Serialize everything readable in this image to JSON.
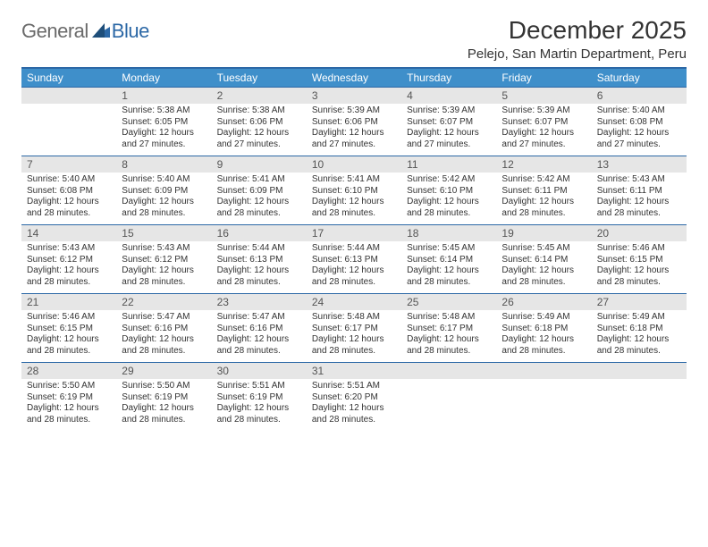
{
  "logo": {
    "text_general": "General",
    "text_blue": "Blue"
  },
  "title": "December 2025",
  "location": "Pelejo, San Martin Department, Peru",
  "colors": {
    "header_bar": "#3f8fca",
    "divider": "#2c68a6",
    "daynum_bg": "#e6e6e6",
    "logo_gray": "#6a6a6a",
    "logo_blue": "#2c68a6"
  },
  "day_labels": [
    "Sunday",
    "Monday",
    "Tuesday",
    "Wednesday",
    "Thursday",
    "Friday",
    "Saturday"
  ],
  "weeks": [
    [
      {
        "n": "",
        "sr": "",
        "ss": "",
        "dl": ""
      },
      {
        "n": "1",
        "sr": "Sunrise: 5:38 AM",
        "ss": "Sunset: 6:05 PM",
        "dl": "Daylight: 12 hours and 27 minutes."
      },
      {
        "n": "2",
        "sr": "Sunrise: 5:38 AM",
        "ss": "Sunset: 6:06 PM",
        "dl": "Daylight: 12 hours and 27 minutes."
      },
      {
        "n": "3",
        "sr": "Sunrise: 5:39 AM",
        "ss": "Sunset: 6:06 PM",
        "dl": "Daylight: 12 hours and 27 minutes."
      },
      {
        "n": "4",
        "sr": "Sunrise: 5:39 AM",
        "ss": "Sunset: 6:07 PM",
        "dl": "Daylight: 12 hours and 27 minutes."
      },
      {
        "n": "5",
        "sr": "Sunrise: 5:39 AM",
        "ss": "Sunset: 6:07 PM",
        "dl": "Daylight: 12 hours and 27 minutes."
      },
      {
        "n": "6",
        "sr": "Sunrise: 5:40 AM",
        "ss": "Sunset: 6:08 PM",
        "dl": "Daylight: 12 hours and 27 minutes."
      }
    ],
    [
      {
        "n": "7",
        "sr": "Sunrise: 5:40 AM",
        "ss": "Sunset: 6:08 PM",
        "dl": "Daylight: 12 hours and 28 minutes."
      },
      {
        "n": "8",
        "sr": "Sunrise: 5:40 AM",
        "ss": "Sunset: 6:09 PM",
        "dl": "Daylight: 12 hours and 28 minutes."
      },
      {
        "n": "9",
        "sr": "Sunrise: 5:41 AM",
        "ss": "Sunset: 6:09 PM",
        "dl": "Daylight: 12 hours and 28 minutes."
      },
      {
        "n": "10",
        "sr": "Sunrise: 5:41 AM",
        "ss": "Sunset: 6:10 PM",
        "dl": "Daylight: 12 hours and 28 minutes."
      },
      {
        "n": "11",
        "sr": "Sunrise: 5:42 AM",
        "ss": "Sunset: 6:10 PM",
        "dl": "Daylight: 12 hours and 28 minutes."
      },
      {
        "n": "12",
        "sr": "Sunrise: 5:42 AM",
        "ss": "Sunset: 6:11 PM",
        "dl": "Daylight: 12 hours and 28 minutes."
      },
      {
        "n": "13",
        "sr": "Sunrise: 5:43 AM",
        "ss": "Sunset: 6:11 PM",
        "dl": "Daylight: 12 hours and 28 minutes."
      }
    ],
    [
      {
        "n": "14",
        "sr": "Sunrise: 5:43 AM",
        "ss": "Sunset: 6:12 PM",
        "dl": "Daylight: 12 hours and 28 minutes."
      },
      {
        "n": "15",
        "sr": "Sunrise: 5:43 AM",
        "ss": "Sunset: 6:12 PM",
        "dl": "Daylight: 12 hours and 28 minutes."
      },
      {
        "n": "16",
        "sr": "Sunrise: 5:44 AM",
        "ss": "Sunset: 6:13 PM",
        "dl": "Daylight: 12 hours and 28 minutes."
      },
      {
        "n": "17",
        "sr": "Sunrise: 5:44 AM",
        "ss": "Sunset: 6:13 PM",
        "dl": "Daylight: 12 hours and 28 minutes."
      },
      {
        "n": "18",
        "sr": "Sunrise: 5:45 AM",
        "ss": "Sunset: 6:14 PM",
        "dl": "Daylight: 12 hours and 28 minutes."
      },
      {
        "n": "19",
        "sr": "Sunrise: 5:45 AM",
        "ss": "Sunset: 6:14 PM",
        "dl": "Daylight: 12 hours and 28 minutes."
      },
      {
        "n": "20",
        "sr": "Sunrise: 5:46 AM",
        "ss": "Sunset: 6:15 PM",
        "dl": "Daylight: 12 hours and 28 minutes."
      }
    ],
    [
      {
        "n": "21",
        "sr": "Sunrise: 5:46 AM",
        "ss": "Sunset: 6:15 PM",
        "dl": "Daylight: 12 hours and 28 minutes."
      },
      {
        "n": "22",
        "sr": "Sunrise: 5:47 AM",
        "ss": "Sunset: 6:16 PM",
        "dl": "Daylight: 12 hours and 28 minutes."
      },
      {
        "n": "23",
        "sr": "Sunrise: 5:47 AM",
        "ss": "Sunset: 6:16 PM",
        "dl": "Daylight: 12 hours and 28 minutes."
      },
      {
        "n": "24",
        "sr": "Sunrise: 5:48 AM",
        "ss": "Sunset: 6:17 PM",
        "dl": "Daylight: 12 hours and 28 minutes."
      },
      {
        "n": "25",
        "sr": "Sunrise: 5:48 AM",
        "ss": "Sunset: 6:17 PM",
        "dl": "Daylight: 12 hours and 28 minutes."
      },
      {
        "n": "26",
        "sr": "Sunrise: 5:49 AM",
        "ss": "Sunset: 6:18 PM",
        "dl": "Daylight: 12 hours and 28 minutes."
      },
      {
        "n": "27",
        "sr": "Sunrise: 5:49 AM",
        "ss": "Sunset: 6:18 PM",
        "dl": "Daylight: 12 hours and 28 minutes."
      }
    ],
    [
      {
        "n": "28",
        "sr": "Sunrise: 5:50 AM",
        "ss": "Sunset: 6:19 PM",
        "dl": "Daylight: 12 hours and 28 minutes."
      },
      {
        "n": "29",
        "sr": "Sunrise: 5:50 AM",
        "ss": "Sunset: 6:19 PM",
        "dl": "Daylight: 12 hours and 28 minutes."
      },
      {
        "n": "30",
        "sr": "Sunrise: 5:51 AM",
        "ss": "Sunset: 6:19 PM",
        "dl": "Daylight: 12 hours and 28 minutes."
      },
      {
        "n": "31",
        "sr": "Sunrise: 5:51 AM",
        "ss": "Sunset: 6:20 PM",
        "dl": "Daylight: 12 hours and 28 minutes."
      },
      {
        "n": "",
        "sr": "",
        "ss": "",
        "dl": ""
      },
      {
        "n": "",
        "sr": "",
        "ss": "",
        "dl": ""
      },
      {
        "n": "",
        "sr": "",
        "ss": "",
        "dl": ""
      }
    ]
  ]
}
